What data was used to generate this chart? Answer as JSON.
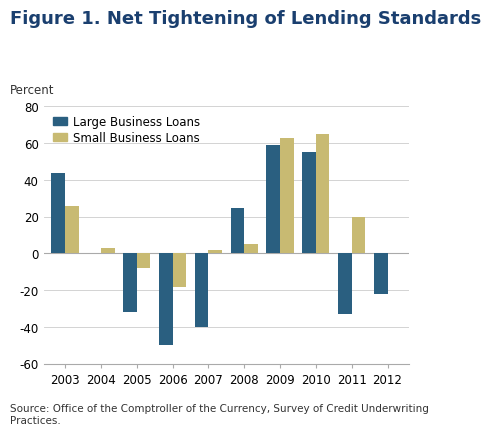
{
  "title": "Figure 1. Net Tightening of Lending Standards",
  "ylabel": "Percent",
  "years": [
    2003,
    2004,
    2005,
    2006,
    2007,
    2008,
    2009,
    2010,
    2011,
    2012
  ],
  "large_business": [
    44,
    0,
    -32,
    -50,
    -40,
    25,
    59,
    55,
    -33,
    -22
  ],
  "small_business": [
    26,
    3,
    -8,
    -18,
    2,
    5,
    63,
    65,
    20,
    0
  ],
  "large_color": "#2a5f80",
  "small_color": "#c8ba72",
  "ylim": [
    -60,
    80
  ],
  "yticks": [
    -60,
    -40,
    -20,
    0,
    20,
    40,
    60,
    80
  ],
  "background_color": "#ffffff",
  "source_text": "Source: Office of the Comptroller of the Currency, Survey of Credit Underwriting\nPractices.",
  "legend_large": "Large Business Loans",
  "legend_small": "Small Business Loans",
  "bar_width": 0.38,
  "title_fontsize": 13,
  "axis_fontsize": 8.5,
  "tick_fontsize": 8.5,
  "source_fontsize": 7.5,
  "title_color": "#1a3f6f"
}
